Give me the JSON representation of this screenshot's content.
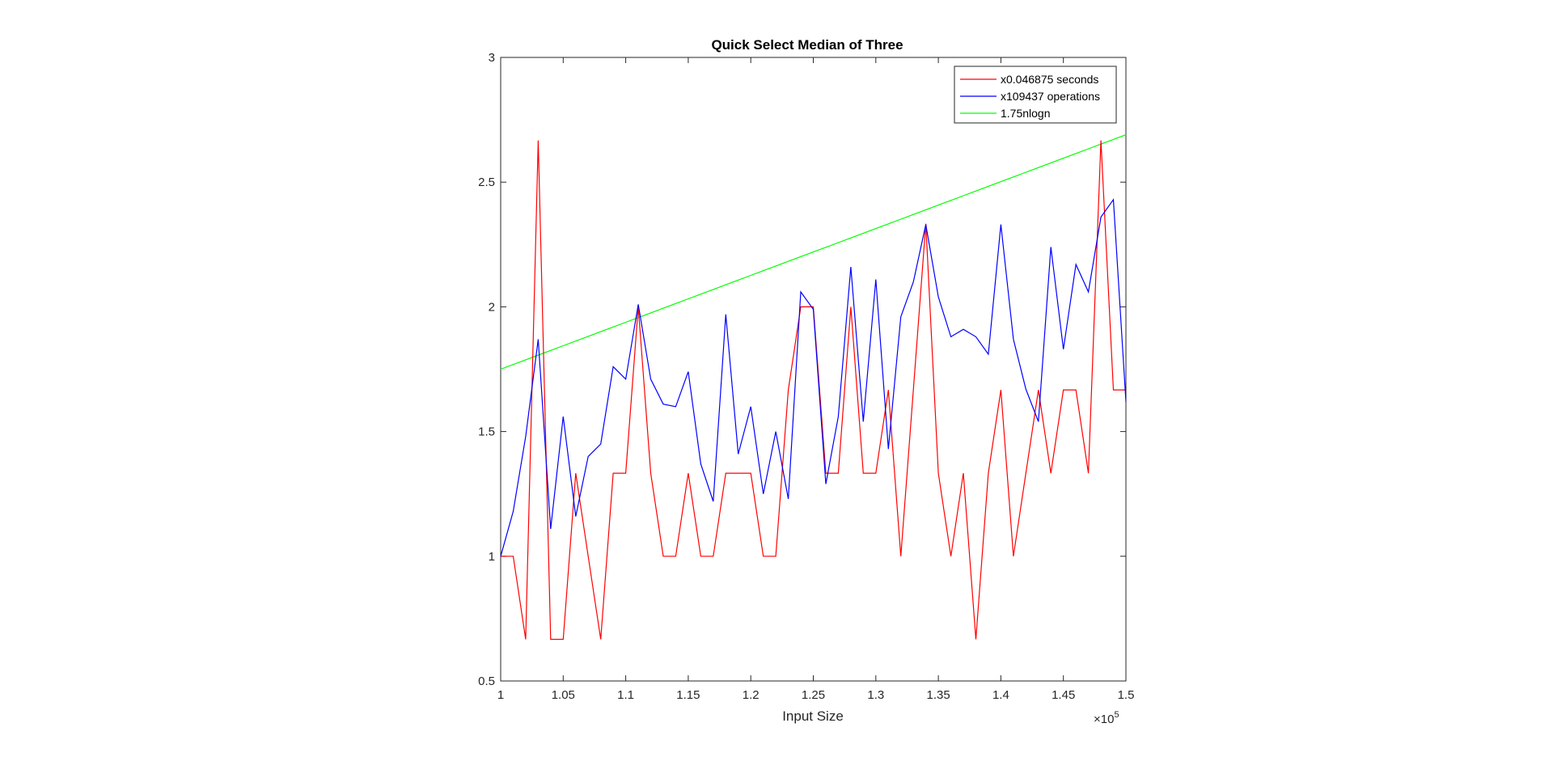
{
  "chart_data": {
    "type": "line",
    "title": "Quick Select Median of Three",
    "xlabel": "Input Size",
    "ylabel": "",
    "x_exponent_label": "×10",
    "x_exponent_power": "5",
    "xlim": [
      100000,
      150000
    ],
    "ylim": [
      0.5,
      3
    ],
    "xticks": [
      100000,
      105000,
      110000,
      115000,
      120000,
      125000,
      130000,
      135000,
      140000,
      145000,
      150000
    ],
    "xtick_labels": [
      "1",
      "1.05",
      "1.1",
      "1.15",
      "1.2",
      "1.25",
      "1.3",
      "1.35",
      "1.4",
      "1.45",
      "1.5"
    ],
    "yticks": [
      0.5,
      1,
      1.5,
      2,
      2.5,
      3
    ],
    "ytick_labels": [
      "0.5",
      "1",
      "1.5",
      "2",
      "2.5",
      "3"
    ],
    "grid": false,
    "legend_position": "top-right",
    "x": [
      100000,
      101000,
      102000,
      103000,
      104000,
      105000,
      106000,
      107000,
      108000,
      109000,
      110000,
      111000,
      112000,
      113000,
      114000,
      115000,
      116000,
      117000,
      118000,
      119000,
      120000,
      121000,
      122000,
      123000,
      124000,
      125000,
      126000,
      127000,
      128000,
      129000,
      130000,
      131000,
      132000,
      133000,
      134000,
      135000,
      136000,
      137000,
      138000,
      139000,
      140000,
      141000,
      142000,
      143000,
      144000,
      145000,
      146000,
      147000,
      148000,
      149000,
      150000
    ],
    "series": [
      {
        "name": "x0.046875 seconds",
        "color": "#ff0000",
        "values": [
          1,
          1,
          0.667,
          2.667,
          0.667,
          0.667,
          1.333,
          1,
          0.667,
          1.333,
          1.333,
          2,
          1.333,
          1,
          1,
          1.333,
          1,
          1,
          1.333,
          1.333,
          1.333,
          1,
          1,
          1.667,
          2,
          2,
          1.333,
          1.333,
          2,
          1.333,
          1.333,
          1.667,
          1,
          1.667,
          2.333,
          1.333,
          1,
          1.333,
          0.667,
          1.333,
          1.667,
          1,
          1.333,
          1.667,
          1.333,
          1.667,
          1.667,
          1.333,
          2.667,
          1.667,
          1.667
        ]
      },
      {
        "name": "x109437 operations",
        "color": "#0000ff",
        "values": [
          1.0,
          1.18,
          1.48,
          1.87,
          1.11,
          1.56,
          1.16,
          1.4,
          1.45,
          1.76,
          1.71,
          2.01,
          1.71,
          1.61,
          1.6,
          1.74,
          1.37,
          1.22,
          1.97,
          1.41,
          1.6,
          1.25,
          1.5,
          1.23,
          2.06,
          1.99,
          1.29,
          1.56,
          2.16,
          1.54,
          2.11,
          1.43,
          1.96,
          2.1,
          2.33,
          2.04,
          1.88,
          1.91,
          1.88,
          1.81,
          2.33,
          1.87,
          1.67,
          1.54,
          2.24,
          1.83,
          2.17,
          2.06,
          2.36,
          2.43,
          1.62
        ]
      },
      {
        "name": "1.75nlogn",
        "color": "#00ff00",
        "values": [
          1.75,
          1.7688,
          1.7876,
          1.8064,
          1.8252,
          1.844,
          1.8628,
          1.8816,
          1.9004,
          1.9192,
          1.938,
          1.9568,
          1.9756,
          1.9944,
          2.0132,
          2.032,
          2.0508,
          2.0696,
          2.0884,
          2.1072,
          2.126,
          2.1448,
          2.1636,
          2.1824,
          2.2012,
          2.22,
          2.2388,
          2.2576,
          2.2764,
          2.2952,
          2.314,
          2.3328,
          2.3516,
          2.3704,
          2.3892,
          2.408,
          2.4268,
          2.4456,
          2.4644,
          2.4832,
          2.502,
          2.5208,
          2.5396,
          2.5584,
          2.5772,
          2.596,
          2.6148,
          2.6336,
          2.6524,
          2.6712,
          2.69
        ]
      }
    ]
  }
}
